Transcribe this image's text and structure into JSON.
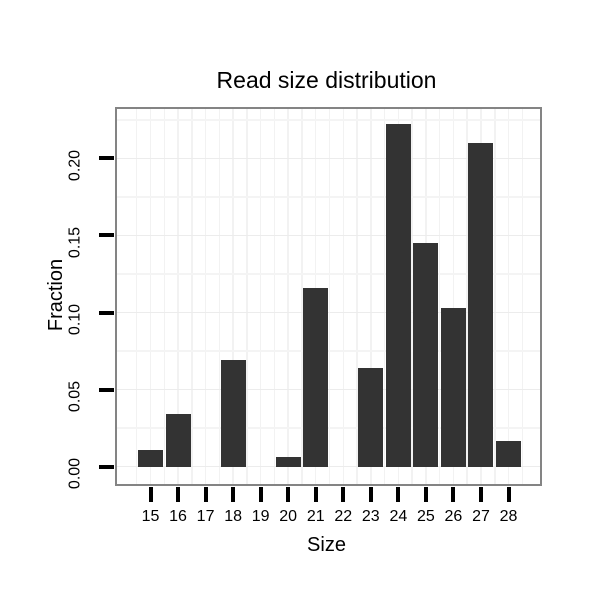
{
  "chart_data": {
    "type": "bar",
    "title": "Read size distribution",
    "xlabel": "Size",
    "ylabel": "Fraction",
    "categories": [
      "15",
      "16",
      "17",
      "18",
      "19",
      "20",
      "21",
      "22",
      "23",
      "24",
      "25",
      "26",
      "27",
      "28"
    ],
    "values": [
      0.011,
      0.034,
      0,
      0.069,
      0,
      0.006,
      0.116,
      0,
      0.064,
      0.222,
      0.145,
      0.103,
      0.21,
      0.017
    ],
    "ylim": [
      -0.0112,
      0.232
    ],
    "y_major_ticks": [
      0,
      0.05,
      0.1,
      0.15,
      0.2
    ],
    "y_tick_labels": [
      "0.00",
      "0.05",
      "0.10",
      "0.15",
      "0.20"
    ],
    "y_minor_gridlines": [
      0.025,
      0.075,
      0.125,
      0.175,
      0.225
    ],
    "grid": true,
    "legend": "none",
    "bar_color": "#333333",
    "panel_border_color": "#848484",
    "major_grid_color": "#ececec",
    "minor_grid_color": "#f4f4f4",
    "vertical_grid_color": "#f2f2f2",
    "tick_color": "#000000"
  }
}
